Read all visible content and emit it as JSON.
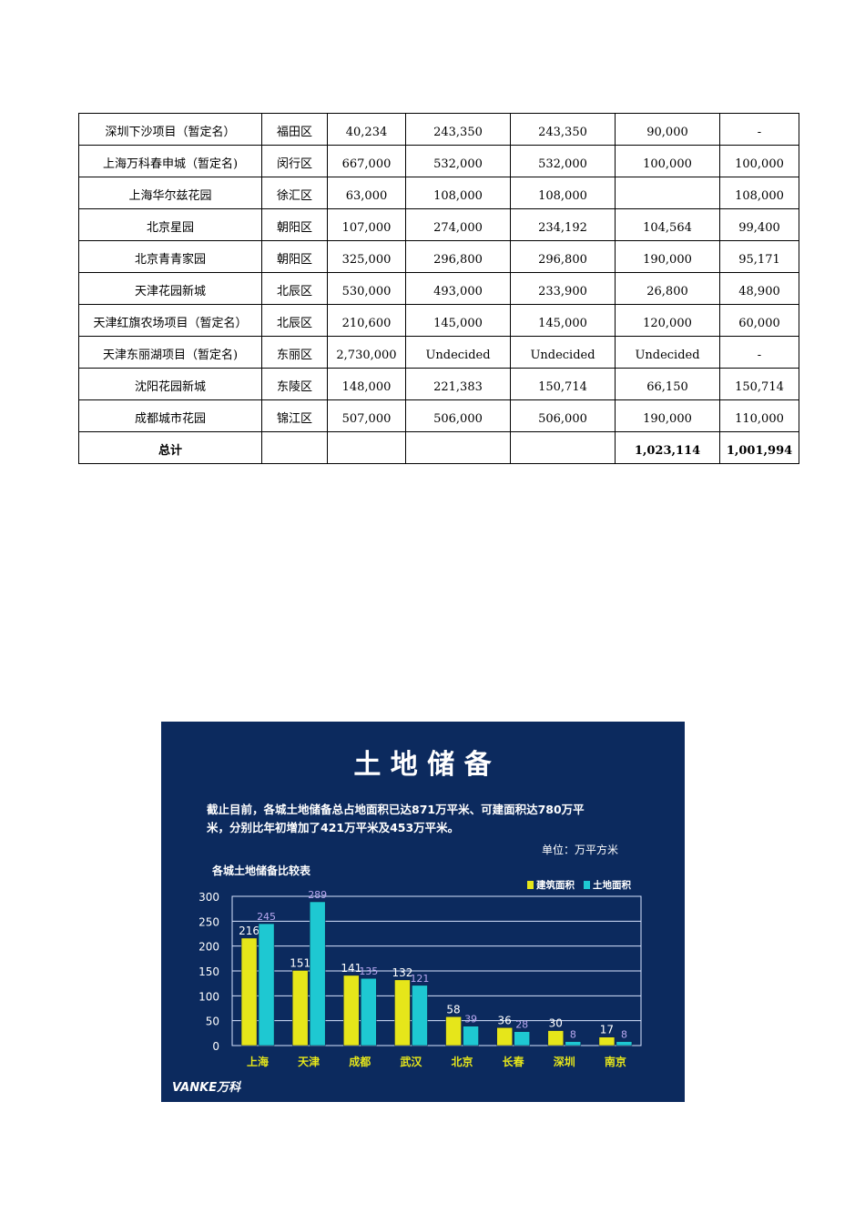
{
  "table": {
    "rows": [
      [
        "深圳下沙项目（暂定名）",
        "福田区",
        "40,234",
        "243,350",
        "243,350",
        "90,000",
        "-"
      ],
      [
        "上海万科春申城（暂定名)",
        "闵行区",
        "667,000",
        "532,000",
        "532,000",
        "100,000",
        "100,000"
      ],
      [
        "上海华尔兹花园",
        "徐汇区",
        "63,000",
        "108,000",
        "108,000",
        "",
        "108,000"
      ],
      [
        "北京星园",
        "朝阳区",
        "107,000",
        "274,000",
        "234,192",
        "104,564",
        "99,400"
      ],
      [
        "北京青青家园",
        "朝阳区",
        "325,000",
        "296,800",
        "296,800",
        "190,000",
        "95,171"
      ],
      [
        "天津花园新城",
        "北辰区",
        "530,000",
        "493,000",
        "233,900",
        "26,800",
        "48,900"
      ],
      [
        "天津红旗农场项目（暂定名）",
        "北辰区",
        "210,600",
        "145,000",
        "145,000",
        "120,000",
        "60,000"
      ],
      [
        "天津东丽湖项目（暂定名)",
        "东丽区",
        "2,730,000",
        "Undecided",
        "Undecided",
        "Undecided",
        "-"
      ],
      [
        "沈阳花园新城",
        "东陵区",
        "148,000",
        "221,383",
        "150,714",
        "66,150",
        "150,714"
      ],
      [
        "成都城市花园",
        "锦江区",
        "507,000",
        "506,000",
        "506,000",
        "190,000",
        "110,000"
      ]
    ],
    "total": [
      "总计",
      "",
      "",
      "",
      "",
      "1,023,114",
      "1,001,994"
    ]
  },
  "slide": {
    "title": "土  地  储  备",
    "summary_line1": "截止目前，各城土地储备总占地面积已达871万平米、可建面积达780万平",
    "summary_line2": "米，分别比年初增加了421万平米及453万平米。",
    "unit": "单位：万平方米",
    "logo_text": "VANKE万科",
    "colors": {
      "background": "#0c2a5e",
      "series_building": "#e6e61a",
      "series_land": "#1ec8d2",
      "land_label": "#b9a8f0"
    }
  },
  "chart_data": {
    "type": "bar",
    "title": "各城土地储备比较表",
    "categories": [
      "上海",
      "天津",
      "成都",
      "武汉",
      "北京",
      "长春",
      "深圳",
      "南京"
    ],
    "series": [
      {
        "name": "建筑面积",
        "values": [
          216,
          151,
          141,
          132,
          58,
          36,
          30,
          17
        ]
      },
      {
        "name": "土地面积",
        "values": [
          245,
          289,
          135,
          121,
          39,
          28,
          8,
          8
        ]
      }
    ],
    "yticks": [
      "0",
      "50",
      "100",
      "150",
      "200",
      "250",
      "300"
    ],
    "ylim": [
      0,
      300
    ],
    "legend": "top-right",
    "grid": true
  }
}
